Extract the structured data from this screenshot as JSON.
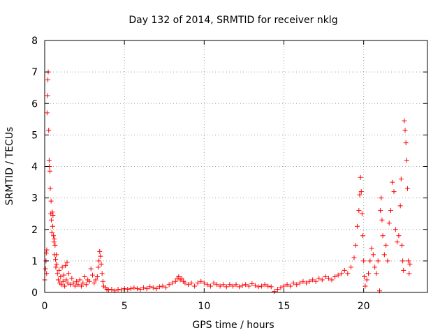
{
  "chart_data": {
    "type": "scatter",
    "title": "Day 132 of 2014, SRMTID for receiver nklg",
    "xlabel": "GPS time / hours",
    "ylabel": "SRMTID / TECUs",
    "xlim": [
      0,
      24
    ],
    "ylim": [
      0,
      8
    ],
    "xticks": [
      0,
      5,
      10,
      15,
      20
    ],
    "yticks": [
      0,
      1,
      2,
      3,
      4,
      5,
      6,
      7,
      8
    ],
    "grid": true,
    "marker": "+",
    "color": "#ff0000",
    "series": [
      {
        "name": "SRMTID",
        "points": [
          [
            0.0,
            0.4
          ],
          [
            0.05,
            0.75
          ],
          [
            0.08,
            1.0
          ],
          [
            0.1,
            1.25
          ],
          [
            0.12,
            0.6
          ],
          [
            0.13,
            1.35
          ],
          [
            0.15,
            5.7
          ],
          [
            0.18,
            6.25
          ],
          [
            0.2,
            6.75
          ],
          [
            0.22,
            7.0
          ],
          [
            0.25,
            5.15
          ],
          [
            0.28,
            4.2
          ],
          [
            0.3,
            4.0
          ],
          [
            0.33,
            3.85
          ],
          [
            0.35,
            3.3
          ],
          [
            0.38,
            2.5
          ],
          [
            0.4,
            2.9
          ],
          [
            0.42,
            2.3
          ],
          [
            0.45,
            1.9
          ],
          [
            0.48,
            2.55
          ],
          [
            0.5,
            2.1
          ],
          [
            0.52,
            2.45
          ],
          [
            0.55,
            1.8
          ],
          [
            0.58,
            1.6
          ],
          [
            0.6,
            1.7
          ],
          [
            0.62,
            1.2
          ],
          [
            0.65,
            1.5
          ],
          [
            0.68,
            1.05
          ],
          [
            0.7,
            0.8
          ],
          [
            0.73,
            1.2
          ],
          [
            0.75,
            0.9
          ],
          [
            0.8,
            0.6
          ],
          [
            0.85,
            0.4
          ],
          [
            0.9,
            0.7
          ],
          [
            0.95,
            0.3
          ],
          [
            1.0,
            0.5
          ],
          [
            1.05,
            0.25
          ],
          [
            1.1,
            0.8
          ],
          [
            1.15,
            0.35
          ],
          [
            1.2,
            0.55
          ],
          [
            1.25,
            0.2
          ],
          [
            1.3,
            0.85
          ],
          [
            1.35,
            0.4
          ],
          [
            1.4,
            0.95
          ],
          [
            1.45,
            0.3
          ],
          [
            1.5,
            0.6
          ],
          [
            1.6,
            0.25
          ],
          [
            1.7,
            0.45
          ],
          [
            1.8,
            0.3
          ],
          [
            1.9,
            0.2
          ],
          [
            2.0,
            0.35
          ],
          [
            2.1,
            0.25
          ],
          [
            2.2,
            0.4
          ],
          [
            2.3,
            0.2
          ],
          [
            2.4,
            0.3
          ],
          [
            2.5,
            0.5
          ],
          [
            2.6,
            0.25
          ],
          [
            2.7,
            0.4
          ],
          [
            2.8,
            0.35
          ],
          [
            2.9,
            0.75
          ],
          [
            3.0,
            0.55
          ],
          [
            3.1,
            0.3
          ],
          [
            3.2,
            0.4
          ],
          [
            3.3,
            0.5
          ],
          [
            3.35,
            0.8
          ],
          [
            3.4,
            1.0
          ],
          [
            3.45,
            1.3
          ],
          [
            3.5,
            1.15
          ],
          [
            3.55,
            0.9
          ],
          [
            3.6,
            0.6
          ],
          [
            3.65,
            0.35
          ],
          [
            3.7,
            0.2
          ],
          [
            3.8,
            0.15
          ],
          [
            3.9,
            0.1
          ],
          [
            4.0,
            0.08
          ],
          [
            4.2,
            0.1
          ],
          [
            4.4,
            0.05
          ],
          [
            4.6,
            0.1
          ],
          [
            4.8,
            0.08
          ],
          [
            5.0,
            0.12
          ],
          [
            5.2,
            0.1
          ],
          [
            5.4,
            0.12
          ],
          [
            5.6,
            0.15
          ],
          [
            5.8,
            0.12
          ],
          [
            6.0,
            0.1
          ],
          [
            6.2,
            0.15
          ],
          [
            6.4,
            0.12
          ],
          [
            6.6,
            0.18
          ],
          [
            6.8,
            0.15
          ],
          [
            7.0,
            0.12
          ],
          [
            7.2,
            0.18
          ],
          [
            7.4,
            0.2
          ],
          [
            7.6,
            0.15
          ],
          [
            7.8,
            0.25
          ],
          [
            8.0,
            0.3
          ],
          [
            8.2,
            0.35
          ],
          [
            8.3,
            0.45
          ],
          [
            8.4,
            0.5
          ],
          [
            8.5,
            0.4
          ],
          [
            8.6,
            0.45
          ],
          [
            8.7,
            0.35
          ],
          [
            8.8,
            0.3
          ],
          [
            9.0,
            0.25
          ],
          [
            9.2,
            0.3
          ],
          [
            9.4,
            0.2
          ],
          [
            9.6,
            0.3
          ],
          [
            9.8,
            0.35
          ],
          [
            10.0,
            0.3
          ],
          [
            10.2,
            0.25
          ],
          [
            10.4,
            0.2
          ],
          [
            10.6,
            0.3
          ],
          [
            10.8,
            0.25
          ],
          [
            11.0,
            0.2
          ],
          [
            11.2,
            0.25
          ],
          [
            11.4,
            0.18
          ],
          [
            11.6,
            0.25
          ],
          [
            11.8,
            0.2
          ],
          [
            12.0,
            0.25
          ],
          [
            12.2,
            0.18
          ],
          [
            12.4,
            0.22
          ],
          [
            12.6,
            0.25
          ],
          [
            12.8,
            0.2
          ],
          [
            13.0,
            0.28
          ],
          [
            13.2,
            0.22
          ],
          [
            13.4,
            0.18
          ],
          [
            13.6,
            0.2
          ],
          [
            13.8,
            0.25
          ],
          [
            14.0,
            0.2
          ],
          [
            14.2,
            0.18
          ],
          [
            14.4,
            0.03
          ],
          [
            14.6,
            0.1
          ],
          [
            14.8,
            0.15
          ],
          [
            15.0,
            0.2
          ],
          [
            15.2,
            0.25
          ],
          [
            15.4,
            0.2
          ],
          [
            15.6,
            0.3
          ],
          [
            15.8,
            0.25
          ],
          [
            16.0,
            0.3
          ],
          [
            16.2,
            0.35
          ],
          [
            16.4,
            0.3
          ],
          [
            16.6,
            0.35
          ],
          [
            16.8,
            0.4
          ],
          [
            17.0,
            0.35
          ],
          [
            17.2,
            0.45
          ],
          [
            17.4,
            0.4
          ],
          [
            17.6,
            0.5
          ],
          [
            17.8,
            0.45
          ],
          [
            18.0,
            0.4
          ],
          [
            18.2,
            0.5
          ],
          [
            18.4,
            0.55
          ],
          [
            18.6,
            0.6
          ],
          [
            18.8,
            0.7
          ],
          [
            19.0,
            0.6
          ],
          [
            19.2,
            0.8
          ],
          [
            19.4,
            1.1
          ],
          [
            19.5,
            1.5
          ],
          [
            19.6,
            2.1
          ],
          [
            19.7,
            2.6
          ],
          [
            19.75,
            3.1
          ],
          [
            19.8,
            3.65
          ],
          [
            19.85,
            3.2
          ],
          [
            19.9,
            2.5
          ],
          [
            19.95,
            1.8
          ],
          [
            20.0,
            1.0
          ],
          [
            20.05,
            0.5
          ],
          [
            20.1,
            0.2
          ],
          [
            20.2,
            0.4
          ],
          [
            20.3,
            0.6
          ],
          [
            20.4,
            1.0
          ],
          [
            20.5,
            1.4
          ],
          [
            20.6,
            1.2
          ],
          [
            20.7,
            0.8
          ],
          [
            20.8,
            0.6
          ],
          [
            20.9,
            1.0
          ],
          [
            21.0,
            0.05
          ],
          [
            21.05,
            2.6
          ],
          [
            21.1,
            3.0
          ],
          [
            21.15,
            2.3
          ],
          [
            21.2,
            1.8
          ],
          [
            21.3,
            1.2
          ],
          [
            21.4,
            1.5
          ],
          [
            21.5,
            1.0
          ],
          [
            21.6,
            2.2
          ],
          [
            21.7,
            2.6
          ],
          [
            21.8,
            3.5
          ],
          [
            21.9,
            3.2
          ],
          [
            22.0,
            2.0
          ],
          [
            22.1,
            1.6
          ],
          [
            22.2,
            1.8
          ],
          [
            22.3,
            2.75
          ],
          [
            22.35,
            3.6
          ],
          [
            22.4,
            1.5
          ],
          [
            22.45,
            1.0
          ],
          [
            22.5,
            0.7
          ],
          [
            22.55,
            5.45
          ],
          [
            22.6,
            5.15
          ],
          [
            22.65,
            4.75
          ],
          [
            22.7,
            4.2
          ],
          [
            22.75,
            3.3
          ],
          [
            22.8,
            1.0
          ],
          [
            22.85,
            0.6
          ],
          [
            22.9,
            0.9
          ]
        ]
      }
    ]
  }
}
